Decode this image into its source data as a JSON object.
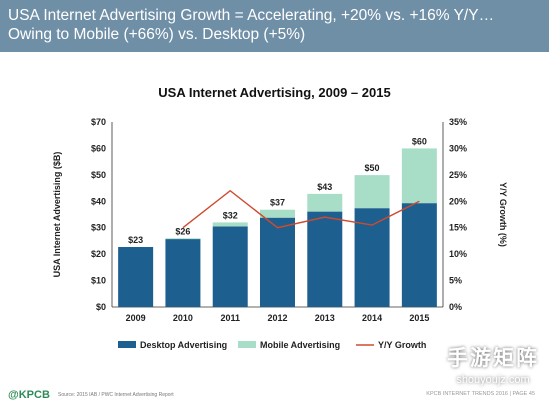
{
  "header": {
    "line1": "USA Internet Advertising Growth = Accelerating, +20% vs. +16% Y/Y…",
    "line2": "Owing to Mobile (+66%) vs. Desktop (+5%)"
  },
  "chart_data": {
    "type": "bar",
    "title": "USA Internet Advertising, 2009 – 2015",
    "categories": [
      "2009",
      "2010",
      "2011",
      "2012",
      "2013",
      "2014",
      "2015"
    ],
    "stacked": true,
    "series": [
      {
        "name": "Desktop Advertising",
        "type": "bar",
        "axis": "left",
        "color": "#1d5f8f",
        "values": [
          22.7,
          25.7,
          30.5,
          33.8,
          36.1,
          37.4,
          39.3
        ]
      },
      {
        "name": "Mobile Advertising",
        "type": "bar",
        "axis": "left",
        "color": "#a8dec8",
        "values": [
          0.0,
          0.3,
          1.5,
          3.0,
          6.7,
          12.5,
          20.7
        ]
      },
      {
        "name": "Y/Y Growth",
        "type": "line",
        "axis": "right",
        "color": "#d04a2e",
        "values": [
          null,
          15,
          22,
          15,
          17,
          15.5,
          20
        ]
      }
    ],
    "total_labels": [
      "$23",
      "$26",
      "$32",
      "$37",
      "$43",
      "$50",
      "$60"
    ],
    "ylabel": "USA Internet Advertising ($B)",
    "ylabel_right": "Y/Y Growth (%)",
    "ylim": [
      0,
      70
    ],
    "ylim_right": [
      0,
      35
    ],
    "yticks": [
      "$0",
      "$10",
      "$20",
      "$30",
      "$40",
      "$50",
      "$60",
      "$70"
    ],
    "yticks_right": [
      "0%",
      "5%",
      "10%",
      "15%",
      "20%",
      "25%",
      "30%",
      "35%"
    ],
    "legend_position": "bottom",
    "grid": false
  },
  "footer": {
    "logo": "@KPCB",
    "source": "Source: 2015 IAB / PWC Internet Advertising Report",
    "page": "KPCB INTERNET TRENDS 2016  |  PAGE 45"
  },
  "watermark": {
    "main": "手游矩阵",
    "sub": "shouyoujz.com"
  }
}
